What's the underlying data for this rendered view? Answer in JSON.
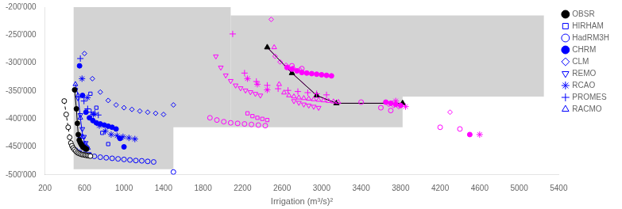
{
  "chart_data": {
    "type": "scatter",
    "xlabel": "Irrigation (m³/s)²",
    "xlim": [
      200,
      5400
    ],
    "ylim": [
      -500000,
      -200000
    ],
    "xticks": [
      200,
      600,
      1000,
      1400,
      1800,
      2200,
      2600,
      3000,
      3400,
      3800,
      4200,
      4600,
      5000,
      5400
    ],
    "yticks": [
      {
        "value": -500000,
        "label": "-500'000"
      },
      {
        "value": -450000,
        "label": "-450'000"
      },
      {
        "value": -400000,
        "label": "-400'000"
      },
      {
        "value": -350000,
        "label": "-350'000"
      },
      {
        "value": -300000,
        "label": "-300'000"
      },
      {
        "value": -250000,
        "label": "-250'000"
      },
      {
        "value": -200000,
        "label": "-200'000"
      }
    ],
    "grid": false,
    "legend": "upper right",
    "regions": [
      {
        "color": "#d3d3d3",
        "x": [
          490,
          490,
          1500,
          1500,
          2080,
          2080,
          490
        ],
        "y": [
          -200000,
          -490000,
          -490000,
          -415000,
          -415000,
          -200000,
          -200000
        ]
      },
      {
        "color": "#d3d3d3",
        "x": [
          2080,
          2080,
          3820,
          3820,
          5250,
          5250,
          2080
        ],
        "y": [
          -215000,
          -415000,
          -415000,
          -360000,
          -360000,
          -215000,
          -215000
        ]
      }
    ],
    "series": [
      {
        "name": "OBSR",
        "color": "black",
        "marker": "circle",
        "line_style": "solid",
        "x": [
          500,
          518,
          528,
          537,
          547,
          556,
          563,
          569,
          575,
          580,
          585,
          590,
          595,
          600,
          605,
          610,
          615,
          620
        ],
        "values": [
          -348000,
          -382000,
          -408000,
          -428000,
          -438000,
          -442000,
          -444000,
          -446000,
          -447500,
          -449000,
          -450000,
          -451000,
          -451500,
          -452000,
          -452500,
          -453000,
          -453500,
          -454000
        ]
      },
      {
        "name": "OBSR",
        "color": "black",
        "marker": "circle_white",
        "line_style": "dashed",
        "x": [
          395,
          415,
          435,
          450,
          462,
          473,
          485,
          498,
          512,
          526,
          540,
          555,
          570,
          585,
          600,
          615,
          630,
          645,
          660
        ],
        "values": [
          -368000,
          -392000,
          -415000,
          -433000,
          -443000,
          -448000,
          -452000,
          -455000,
          -457500,
          -460000,
          -461500,
          -462500,
          -463500,
          -464000,
          -464500,
          -465000,
          -465500,
          -466000,
          -466500
        ]
      },
      {
        "name": "HIRHAM",
        "color": "blue",
        "marker": "square_open",
        "line_style": "none",
        "x": [
          550,
          580,
          660,
          720,
          780,
          840
        ],
        "values": [
          -430000,
          -450000,
          -355000,
          -380000,
          -425000,
          -445000
        ]
      },
      {
        "name": "HadRM3H",
        "color": "blue",
        "marker": "circle_open",
        "line_style": "none",
        "x": [
          510,
          550,
          600,
          650,
          700,
          760,
          820,
          880,
          940,
          1000,
          1060,
          1120,
          1180,
          1240,
          1300,
          1500
        ],
        "values": [
          -456000,
          -460000,
          -463000,
          -465000,
          -467000,
          -468500,
          -469500,
          -470500,
          -471500,
          -472500,
          -473500,
          -474500,
          -475000,
          -476000,
          -477000,
          -495000
        ]
      },
      {
        "name": "CHRM",
        "color": "blue",
        "marker": "circle",
        "line_style": "none",
        "x": [
          550,
          580,
          615,
          650,
          685,
          720,
          760,
          800,
          840,
          880,
          920,
          960,
          1000
        ],
        "values": [
          -305000,
          -358000,
          -388000,
          -398000,
          -403000,
          -407000,
          -409000,
          -411000,
          -413000,
          -415000,
          -418000,
          -435000,
          -450000
        ]
      },
      {
        "name": "CLM",
        "color": "blue",
        "marker": "diamond_open",
        "line_style": "none",
        "x": [
          600,
          680,
          760,
          840,
          920,
          1000,
          1080,
          1160,
          1240,
          1320,
          1400,
          1500
        ],
        "values": [
          -283000,
          -328000,
          -352000,
          -367000,
          -375000,
          -380000,
          -383000,
          -386000,
          -388000,
          -390000,
          -392000,
          -375000
        ]
      },
      {
        "name": "REMO",
        "color": "blue",
        "marker": "triangle_down_open",
        "line_style": "none",
        "x": [
          508,
          535,
          558,
          578,
          595,
          612,
          628,
          645
        ],
        "values": [
          -348000,
          -363000,
          -393000,
          -418000,
          -432000,
          -443000,
          -453000,
          -463000
        ]
      },
      {
        "name": "RCAO",
        "color": "blue",
        "marker": "star",
        "line_style": "none",
        "x": [
          575,
          630,
          690,
          750,
          810,
          870,
          930,
          990,
          1050,
          1110
        ],
        "values": [
          -328000,
          -362000,
          -392000,
          -412000,
          -422000,
          -428000,
          -430000,
          -432000,
          -434000,
          -436000
        ]
      },
      {
        "name": "PROMES",
        "color": "blue",
        "marker": "plus",
        "line_style": "none",
        "x": [
          558,
          595,
          632,
          668,
          705,
          740
        ],
        "values": [
          -292000,
          -368000,
          -382000,
          -388000,
          -390000,
          -393000
        ]
      },
      {
        "name": "RACMO",
        "color": "blue",
        "marker": "triangle_up_open",
        "line_style": "solid",
        "x": [
          508,
          535,
          558,
          583,
          608,
          635
        ],
        "values": [
          -338000,
          -358000,
          -398000,
          -432000,
          -445000,
          -452000
        ]
      },
      {
        "name": "HIRHAM",
        "color": "magenta",
        "marker": "square_open",
        "line_style": "none",
        "x": [
          2250,
          2300,
          2350,
          2400,
          2450
        ],
        "values": [
          -390000,
          -395000,
          -398000,
          -400000,
          -402000
        ]
      },
      {
        "name": "HadRM3H",
        "color": "magenta",
        "marker": "circle_open",
        "line_style": "none",
        "x": [
          1870,
          1940,
          2010,
          2080,
          2150,
          2220,
          2290,
          2360,
          2430,
          2700,
          2800,
          3400,
          3600,
          3700,
          4200,
          4400
        ],
        "values": [
          -398000,
          -402000,
          -405000,
          -407000,
          -408000,
          -409000,
          -410000,
          -411000,
          -412000,
          -305000,
          -310000,
          -370000,
          -380000,
          -385000,
          -415000,
          -418000
        ]
      },
      {
        "name": "CHRM",
        "color": "magenta",
        "marker": "circle",
        "line_style": "none",
        "x": [
          2650,
          2700,
          2750,
          2800,
          2850,
          2900,
          2950,
          3000,
          3050,
          3100,
          3650,
          3700,
          3750,
          3800,
          4500
        ],
        "values": [
          -308000,
          -311000,
          -314000,
          -317000,
          -318000,
          -319000,
          -320000,
          -321000,
          -322000,
          -323000,
          -370000,
          -372000,
          -374000,
          -376000,
          -428000
        ]
      },
      {
        "name": "CLM",
        "color": "magenta",
        "marker": "diamond_open",
        "line_style": "none",
        "x": [
          2490,
          2530,
          2580,
          2640,
          2710,
          2780,
          3680,
          3730,
          3780,
          4300
        ],
        "values": [
          -222000,
          -288000,
          -298000,
          -304000,
          -309000,
          -312000,
          -374000,
          -376000,
          -378000,
          -388000
        ]
      },
      {
        "name": "REMO",
        "color": "magenta",
        "marker": "triangle_down_open",
        "line_style": "none",
        "x": [
          1930,
          1980,
          2030,
          2080,
          2130,
          2180,
          2230,
          2280,
          2330,
          2380,
          2720,
          2770,
          2820,
          2870,
          2920,
          2970
        ],
        "values": [
          -288000,
          -308000,
          -322000,
          -332000,
          -340000,
          -345000,
          -349000,
          -352000,
          -355000,
          -358000,
          -368000,
          -371000,
          -374000,
          -376000,
          -378000,
          -380000
        ]
      },
      {
        "name": "RCAO",
        "color": "magenta",
        "marker": "star",
        "line_style": "none",
        "x": [
          2250,
          2350,
          2450,
          3750,
          3850,
          4600
        ],
        "values": [
          -328000,
          -338000,
          -348000,
          -368000,
          -378000,
          -428000
        ]
      },
      {
        "name": "PROMES",
        "color": "magenta",
        "marker": "plus",
        "line_style": "none",
        "x": [
          2100,
          2220,
          2340,
          2450,
          2560,
          2660,
          2760,
          2860,
          2950,
          3050
        ],
        "values": [
          -248000,
          -318000,
          -333000,
          -340000,
          -346000,
          -349000,
          -351000,
          -353000,
          -355000,
          -357000
        ]
      },
      {
        "name": "RACMO",
        "color": "magenta",
        "marker": "triangle_up_open",
        "line_style": "none",
        "x": [
          2520,
          2570,
          2620,
          2670,
          2720,
          2770,
          2820,
          2870,
          2920,
          2970,
          3020,
          3070,
          3120,
          3170
        ],
        "values": [
          -272000,
          -338000,
          -353000,
          -358000,
          -360000,
          -362000,
          -363000,
          -364000,
          -365000,
          -366000,
          -367000,
          -368000,
          -369000,
          -370000
        ]
      },
      {
        "name": "RACMO",
        "color": "black",
        "marker": "triangle_up",
        "line_style": "solid",
        "x": [
          2450,
          2700,
          2950,
          3150,
          3820
        ],
        "values": [
          -272000,
          -318000,
          -358000,
          -372000,
          -372000
        ]
      },
      {
        "name": "RACMO",
        "color": "magenta",
        "marker": "none",
        "line_style": "solid",
        "x": [
          2450,
          2700,
          2950,
          3150,
          3820
        ],
        "values": [
          -272000,
          -318000,
          -358000,
          -372000,
          -372000
        ]
      }
    ]
  }
}
